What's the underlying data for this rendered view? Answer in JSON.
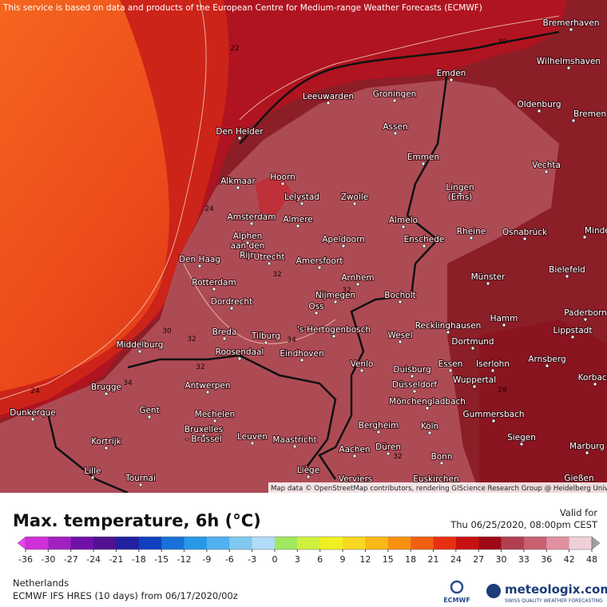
{
  "map": {
    "notice": "This service is based on data and products of the European Centre for Medium-range Weather Forecasts (ECMWF)",
    "attribution": "Map data © OpenStreetMap contributors, rendering GIScience Research Group @ Heidelberg University",
    "cities": [
      "Bremerhaven",
      "Wilhelmshaven",
      "Emden",
      "Groningen",
      "Leeuwarden",
      "Oldenburg",
      "Bremen",
      "Den Helder",
      "Assen",
      "Emmen",
      "Vechta",
      "Alkmaar",
      "Hoorn",
      "Lingen\n(Ems)",
      "Lelystad",
      "Zwolle",
      "Amsterdam",
      "Almere",
      "Almelo",
      "Rheine",
      "Osnabrück",
      "Minden",
      "Alphen\naan den\nRijn",
      "Apeldoorn",
      "Enschede",
      "Utrecht",
      "Den Haag",
      "Amersfoort",
      "Bielefeld",
      "Arnhem",
      "Münster",
      "Rotterdam",
      "Nijmegen",
      "Bocholt",
      "Dordrecht",
      "Oss",
      "Paderborn",
      "Hamm",
      "Lippstadt",
      "Breda",
      "'s-Hertogenbosch",
      "Recklinghausen",
      "Tilburg",
      "Wesel",
      "Dortmund",
      "Middelburg",
      "Roosendaal",
      "Eindhoven",
      "Arnsberg",
      "Venlo",
      "Essen",
      "Iserlohn",
      "Korbach",
      "Duisburg",
      "Wuppertal",
      "Brugge",
      "Antwerpen",
      "Düsseldorf",
      "Mönchengladbach",
      "Gent",
      "Mechelen",
      "Gummersbach",
      "Dunkerque",
      "Bergheim",
      "Köln",
      "Bruxelles\n- Brussel",
      "Leuven",
      "Siegen",
      "Maastricht",
      "Kortrijk",
      "Marburg",
      "Düren",
      "Aachen",
      "Bonn",
      "Lille",
      "Liège",
      "Tournai",
      "Gießen",
      "Verviers",
      "Euskirchen"
    ],
    "contour_labels": [
      "22",
      "24",
      "24",
      "30",
      "32",
      "32",
      "32",
      "32",
      "34",
      "32",
      "30",
      "34",
      "28"
    ]
  },
  "legend": {
    "title": "Max. temperature, 6h (°C)",
    "valid_label": "Valid for",
    "valid_time": "Thu 06/25/2020, 08:00pm CEST",
    "ticks": [
      -36,
      -30,
      -27,
      -24,
      -21,
      -18,
      -15,
      -12,
      -9,
      -6,
      -3,
      0,
      3,
      6,
      9,
      12,
      15,
      18,
      21,
      24,
      27,
      30,
      33,
      36,
      42,
      48
    ],
    "colors": [
      "#f040f0",
      "#d030d8",
      "#a020c0",
      "#7010a8",
      "#501090",
      "#2020a0",
      "#1040c0",
      "#1870d8",
      "#2898e8",
      "#50b0f0",
      "#80c8f0",
      "#b0dcf8",
      "#a0e860",
      "#d0f040",
      "#f0f020",
      "#f8d820",
      "#f8b818",
      "#f89010",
      "#f06010",
      "#e83010",
      "#c81010",
      "#a00818",
      "#b04050",
      "#c86070",
      "#e090a0",
      "#f0d0d8",
      "#a0a0a0"
    ]
  },
  "footer": {
    "region": "Netherlands",
    "model": "ECMWF IFS HRES (10 days) from 06/17/2020/00z",
    "ecmwf": "ECMWF",
    "brand": "meteologix.com",
    "tagline": "SWISS QUALITY WEATHER FORECASTING"
  }
}
